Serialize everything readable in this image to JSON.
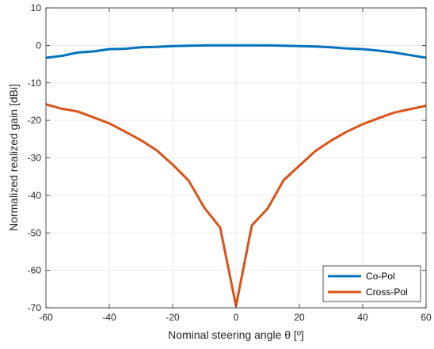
{
  "chart_data": {
    "type": "line",
    "xlabel": "Nominal steering angle θ [º]",
    "ylabel": "Normalized realized gain [dBi]",
    "xlim": [
      -60,
      60
    ],
    "ylim": [
      -70,
      10
    ],
    "xticks": [
      -60,
      -40,
      -20,
      0,
      20,
      40,
      60
    ],
    "yticks": [
      10,
      0,
      -10,
      -20,
      -30,
      -40,
      -50,
      -60,
      -70
    ],
    "grid": true,
    "legend_position": "bottom-right",
    "x": [
      -60,
      -55,
      -50,
      -45,
      -40,
      -35,
      -30,
      -25,
      -20,
      -15,
      -10,
      -5,
      0,
      5,
      10,
      15,
      20,
      25,
      30,
      35,
      40,
      45,
      50,
      55,
      60
    ],
    "series": [
      {
        "name": "Co-Pol",
        "color": "#0072BD",
        "values": [
          -3.3,
          -2.8,
          -1.9,
          -1.6,
          -1.0,
          -0.9,
          -0.5,
          -0.4,
          -0.2,
          -0.1,
          0.0,
          0.0,
          0.0,
          0.0,
          0.0,
          -0.1,
          -0.2,
          -0.3,
          -0.5,
          -0.8,
          -1.0,
          -1.4,
          -1.9,
          -2.6,
          -3.3
        ]
      },
      {
        "name": "Cross-Pol",
        "color": "#D95319",
        "values": [
          -15.7,
          -16.9,
          -17.6,
          -19.2,
          -20.8,
          -23.0,
          -25.3,
          -28.0,
          -31.8,
          -36.0,
          -43.3,
          -48.6,
          -69.5,
          -48.0,
          -43.5,
          -36.0,
          -32.1,
          -28.2,
          -25.4,
          -23.0,
          -21.0,
          -19.4,
          -17.9,
          -17.0,
          -16.1
        ]
      }
    ]
  }
}
